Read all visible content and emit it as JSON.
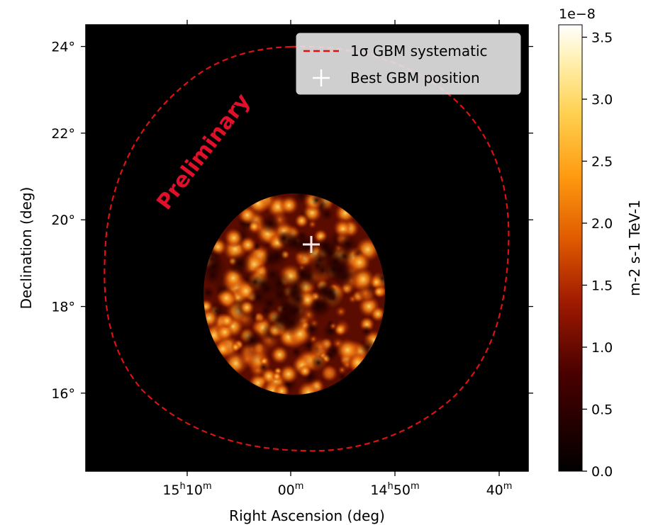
{
  "chart_data": {
    "type": "heatmap",
    "title": "",
    "xlabel": "Right Ascension (deg)",
    "ylabel": "Declination (deg)",
    "x_ticks": [
      {
        "h": "15",
        "m": "10"
      },
      {
        "h": "",
        "m": "00"
      },
      {
        "h": "14",
        "m": "50"
      },
      {
        "h": "",
        "m": "40"
      }
    ],
    "y_ticks": [
      "24°",
      "22°",
      "20°",
      "18°",
      "16°"
    ],
    "y_tick_values": [
      24,
      22,
      20,
      18,
      16
    ],
    "ylim": [
      14.2,
      24.5
    ],
    "colorbar": {
      "label": "m-2 s-1 TeV-1",
      "offset_text": "1e−8",
      "ticks": [
        "0.0",
        "0.5",
        "1.0",
        "1.5",
        "2.0",
        "2.5",
        "3.0",
        "3.5"
      ],
      "tick_values": [
        0.0,
        0.5,
        1.0,
        1.5,
        2.0,
        2.5,
        3.0,
        3.5
      ],
      "range": [
        0.0,
        3.6
      ],
      "colormap": "afmhot"
    },
    "legend": {
      "placement": "top-right",
      "entries": [
        {
          "label": "1σ GBM systematic",
          "style": "dashed-line",
          "color": "#dd1111"
        },
        {
          "label": "Best GBM position",
          "style": "plus-marker",
          "color": "#ffffff"
        }
      ]
    },
    "best_position": {
      "dec": 19.45
    },
    "systematic_circle_radius_deg": 4.7,
    "flux_map_radius_deg": 2.3,
    "annotation": "Preliminary"
  }
}
